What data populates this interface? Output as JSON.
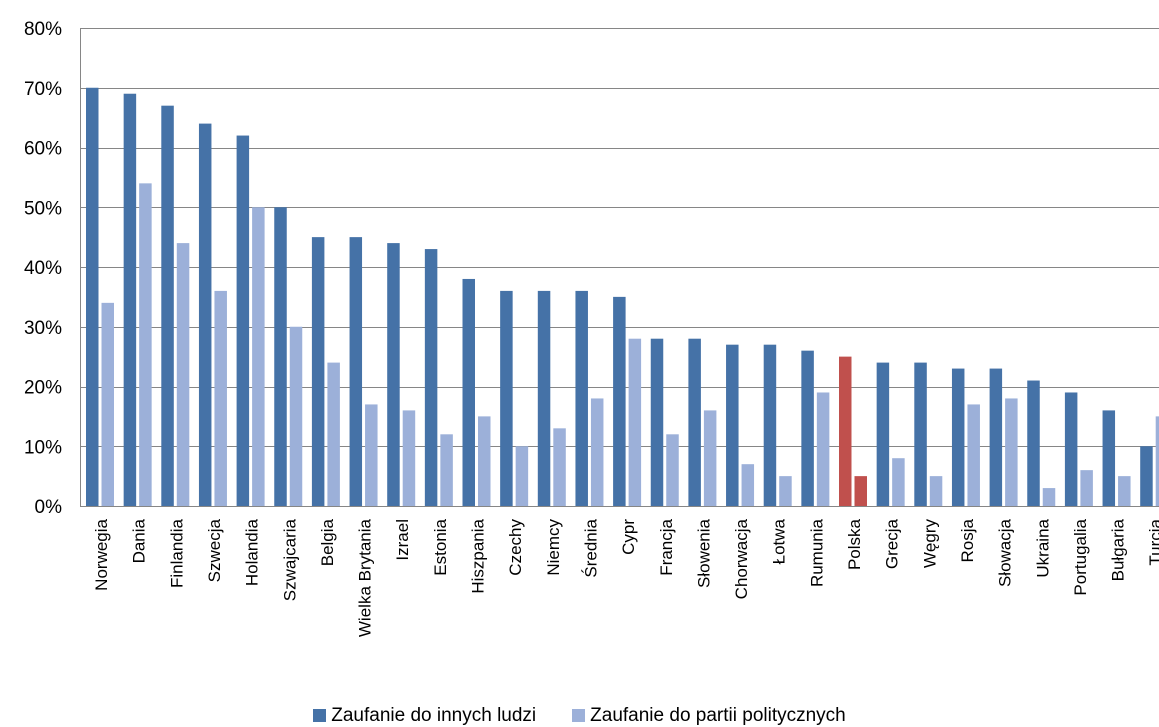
{
  "chart_data": {
    "type": "bar",
    "title": "",
    "xlabel": "",
    "ylabel": "",
    "ylim": [
      0,
      80
    ],
    "y_ticks": [
      "0%",
      "10%",
      "20%",
      "30%",
      "40%",
      "50%",
      "60%",
      "70%",
      "80%"
    ],
    "grid": true,
    "legend_position": "bottom",
    "categories": [
      "Norwegia",
      "Dania",
      "Finlandia",
      "Szwecja",
      "Holandia",
      "Szwajcaria",
      "Belgia",
      "Wielka Brytania",
      "Izrael",
      "Estonia",
      "Hiszpania",
      "Czechy",
      "Niemcy",
      "Średnia",
      "Cypr",
      "Francja",
      "Słowenia",
      "Chorwacja",
      "Łotwa",
      "Rumunia",
      "Polska",
      "Grecja",
      "Węgry",
      "Rosja",
      "Słowacja",
      "Ukraina",
      "Portugalia",
      "Bułgaria",
      "Turcja"
    ],
    "series": [
      {
        "name": "Zaufanie do innych ludzi",
        "color": "#4572A7",
        "values": [
          70,
          69,
          67,
          64,
          62,
          50,
          45,
          45,
          44,
          43,
          38,
          36,
          36,
          36,
          35,
          28,
          28,
          27,
          27,
          26,
          25,
          24,
          24,
          23,
          23,
          21,
          19,
          16,
          10
        ]
      },
      {
        "name": "Zaufanie do partii politycznych",
        "color": "#9CB0D9",
        "values": [
          34,
          54,
          44,
          36,
          50,
          30,
          24,
          17,
          16,
          12,
          15,
          10,
          13,
          18,
          28,
          12,
          16,
          7,
          5,
          19,
          5,
          8,
          5,
          17,
          18,
          3,
          6,
          5,
          15
        ]
      }
    ],
    "highlight": {
      "category": "Polska",
      "color": "#C0504D"
    }
  }
}
